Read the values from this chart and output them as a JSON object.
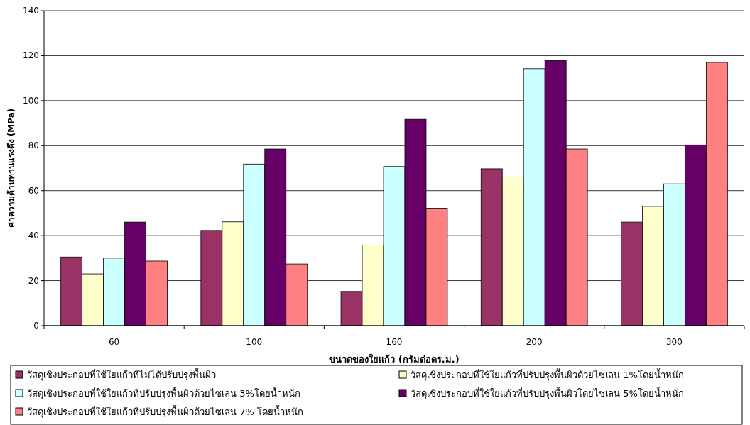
{
  "chart_data": {
    "type": "bar",
    "xlabel": "ขนาดของใยแก้ว (กรัมต่อตร.ม.)",
    "ylabel": "ค่าความต้านทานแรงดึง (MPa)",
    "categories": [
      "60",
      "100",
      "160",
      "200",
      "300"
    ],
    "ylim": [
      0,
      140
    ],
    "yticks": [
      0,
      20,
      40,
      60,
      80,
      100,
      120,
      140
    ],
    "grid": "y",
    "legend": "bottom",
    "series": [
      {
        "name": "วัสดุเชิงประกอบที่ใช้ใยแก้วที่ไม่ได้ปรับปรุงพื้นผิว",
        "color": "#993366",
        "values": [
          30.5,
          42.3,
          15.2,
          69.7,
          46
        ]
      },
      {
        "name": "วัสดุเชิงประกอบที่ใช้ใยแก้วที่ปรับปรุงพื้นผิวด้วยไซเลน 1%โดยน้ำหนัก",
        "color": "#ffffcc",
        "values": [
          23,
          46.1,
          35.8,
          66.1,
          53
        ]
      },
      {
        "name": "วัสดุเชิงประกอบที่ใช้ใยแก้วที่ปรับปรุงพื้นผิวด้วยไซเลน 3%โดยน้ำหนัก",
        "color": "#ccffff",
        "values": [
          30,
          71.8,
          70.7,
          114.2,
          63
        ]
      },
      {
        "name": "วัสดุเชิงประกอบที่ใช้ใยแก้วที่ปรับปรุงพื้นผิวโดยไซเลน 5%โดยน้ำหนัก",
        "color": "#660066",
        "values": [
          46,
          78.5,
          91.7,
          117.8,
          80.3
        ]
      },
      {
        "name": "วัสดุเชิงประกอบที่ใช้ใยแก้วที่ปรับปรุงพื้นผิวด้วยไซเลน 7% โดยน้ำหนัก",
        "color": "#ff8080",
        "values": [
          28.7,
          27.4,
          52.2,
          78.5,
          117
        ]
      }
    ]
  }
}
